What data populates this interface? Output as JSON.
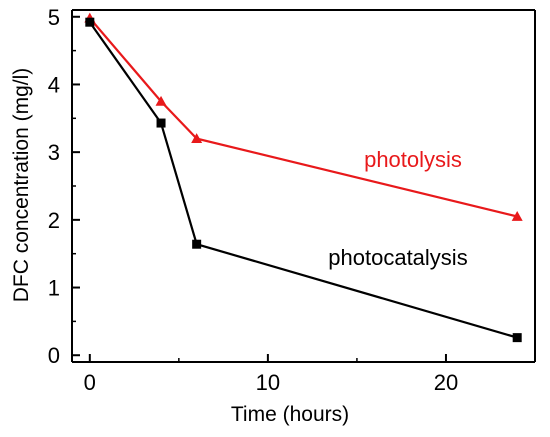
{
  "chart_data": {
    "type": "line",
    "xlabel": "Time (hours)",
    "ylabel": "DFC concentration (mg/l)",
    "xlim": [
      -1,
      25
    ],
    "ylim": [
      -0.1,
      5.1
    ],
    "x_ticks": [
      0,
      10,
      20
    ],
    "y_ticks": [
      0,
      1,
      2,
      3,
      4,
      5
    ],
    "x_tick_labels": [
      "0",
      "10",
      "20"
    ],
    "y_tick_labels": [
      "0",
      "1",
      "2",
      "3",
      "4",
      "5"
    ],
    "grid": false,
    "legend": "none",
    "series": [
      {
        "name": "photolysis",
        "color": "#e8191b",
        "marker": "triangle",
        "x": [
          0,
          4,
          6,
          24
        ],
        "y": [
          4.98,
          3.75,
          3.2,
          2.05
        ]
      },
      {
        "name": "photocatalysis",
        "color": "#000000",
        "marker": "square",
        "x": [
          0,
          4,
          6,
          24
        ],
        "y": [
          4.92,
          3.43,
          1.64,
          0.26
        ],
        "error": [
          0,
          0,
          0.05,
          0
        ]
      }
    ]
  }
}
